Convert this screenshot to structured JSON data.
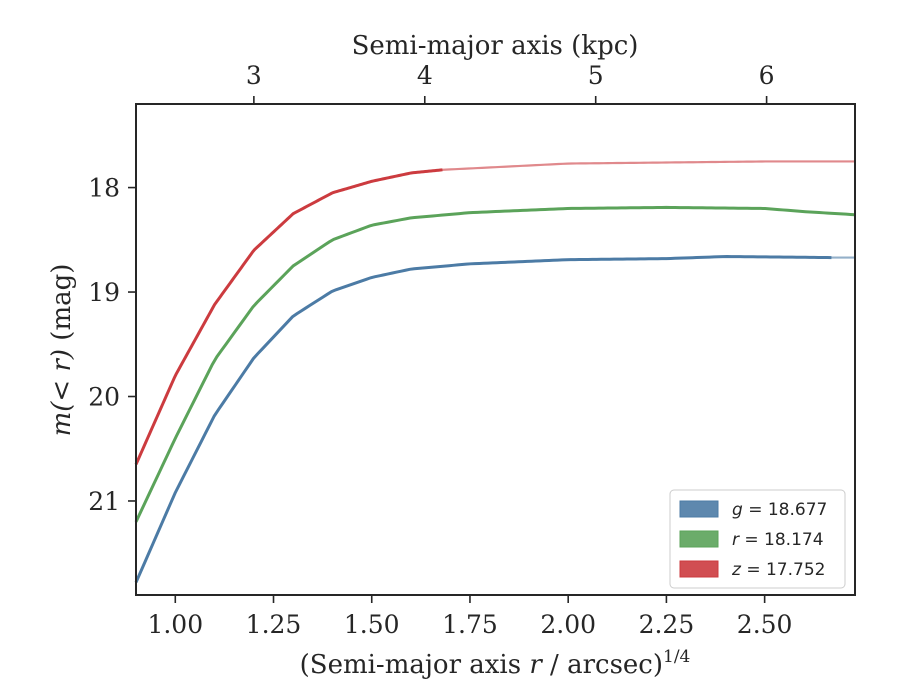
{
  "chart_data": {
    "type": "line",
    "xlabel_bottom": {
      "prefix": "(Semi-major axis ",
      "var": "r",
      "suffix": " / arcsec)",
      "exponent": "1/4"
    },
    "xlabel_top": "Semi-major axis (kpc)",
    "ylabel": {
      "expr": "m(< r)",
      "unit": " (mag)"
    },
    "xlim": [
      0.9,
      2.73
    ],
    "ylim": [
      21.9,
      17.2
    ],
    "y_inverted": true,
    "x_ticks": [
      "1.00",
      "1.25",
      "1.50",
      "1.75",
      "2.00",
      "2.25",
      "2.50"
    ],
    "x_tick_values": [
      1.0,
      1.25,
      1.5,
      1.75,
      2.0,
      2.25,
      2.5
    ],
    "y_ticks": [
      "18",
      "19",
      "20",
      "21"
    ],
    "y_tick_values": [
      18,
      19,
      20,
      21
    ],
    "top_ticks": [
      "3",
      "4",
      "5",
      "6"
    ],
    "top_tick_x_values": [
      1.2,
      1.635,
      2.07,
      2.505
    ],
    "grid": false,
    "legend_position": "lower-right",
    "series": [
      {
        "name": "g",
        "label_var": "g",
        "label_value": " = 18.677",
        "color": "#4c7ba5",
        "asymptote": 18.677,
        "scale": 0.152,
        "measured_to": 2.67,
        "points": [
          [
            0.9,
            21.78
          ],
          [
            1.0,
            20.92
          ],
          [
            1.1,
            20.18
          ],
          [
            1.2,
            19.63
          ],
          [
            1.3,
            19.23
          ],
          [
            1.4,
            18.99
          ],
          [
            1.5,
            18.86
          ],
          [
            1.6,
            18.78
          ],
          [
            1.75,
            18.73
          ],
          [
            2.0,
            18.69
          ],
          [
            2.25,
            18.68
          ],
          [
            2.4,
            18.66
          ],
          [
            2.67,
            18.67
          ]
        ]
      },
      {
        "name": "r",
        "label_var": "r",
        "label_value": " = 18.174",
        "color": "#5ba35a",
        "asymptote": 18.174,
        "scale": 0.152,
        "measured_to": 2.73,
        "points": [
          [
            0.9,
            21.2
          ],
          [
            1.0,
            20.4
          ],
          [
            1.1,
            19.65
          ],
          [
            1.2,
            19.13
          ],
          [
            1.3,
            18.75
          ],
          [
            1.4,
            18.5
          ],
          [
            1.5,
            18.36
          ],
          [
            1.6,
            18.29
          ],
          [
            1.75,
            18.24
          ],
          [
            2.0,
            18.2
          ],
          [
            2.25,
            18.19
          ],
          [
            2.5,
            18.2
          ],
          [
            2.6,
            18.23
          ],
          [
            2.73,
            18.26
          ]
        ]
      },
      {
        "name": "z",
        "label_var": "z",
        "label_value": " = 17.752",
        "color": "#cc3b3f",
        "asymptote": 17.752,
        "scale": 0.152,
        "measured_to": 1.68,
        "points": [
          [
            0.9,
            20.65
          ],
          [
            1.0,
            19.8
          ],
          [
            1.1,
            19.12
          ],
          [
            1.2,
            18.6
          ],
          [
            1.3,
            18.25
          ],
          [
            1.4,
            18.05
          ],
          [
            1.5,
            17.94
          ],
          [
            1.6,
            17.86
          ],
          [
            1.68,
            17.83
          ],
          [
            2.0,
            17.77
          ],
          [
            2.5,
            17.75
          ],
          [
            2.73,
            17.75
          ]
        ]
      }
    ]
  }
}
